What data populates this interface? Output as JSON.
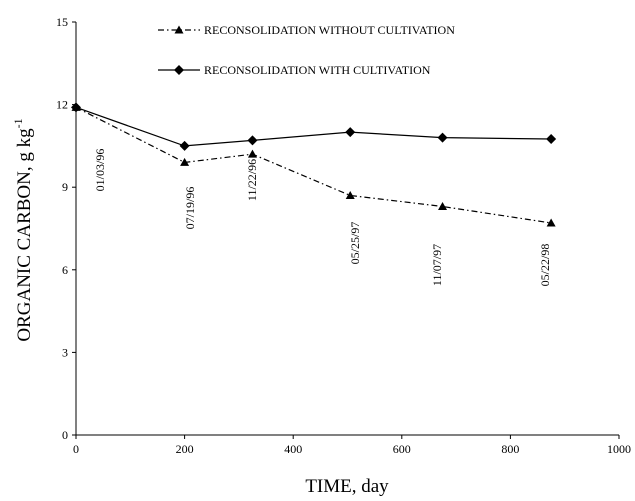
{
  "chart_data": {
    "type": "line",
    "xlabel": "TIME, day",
    "ylabel": {
      "text": "ORGANIC CARBON, g kg",
      "superscript": "-1"
    },
    "xlim": [
      0,
      1000
    ],
    "xticks": [
      0,
      200,
      400,
      600,
      800,
      1000
    ],
    "ylim": [
      0,
      15
    ],
    "yticks": [
      0,
      3,
      6,
      9,
      12,
      15
    ],
    "grid": false,
    "series": [
      {
        "name": "RECONSOLIDATION WITHOUT CULTIVATION",
        "color": "#000000",
        "dash": "dash-dot",
        "marker": "triangle",
        "x": [
          0,
          200,
          325,
          505,
          675,
          875
        ],
        "values": [
          11.9,
          9.9,
          10.2,
          8.7,
          8.3,
          7.7
        ]
      },
      {
        "name": "RECONSOLIDATION WITH CULTIVATION",
        "color": "#000000",
        "dash": "solid",
        "marker": "diamond",
        "x": [
          0,
          200,
          325,
          505,
          675,
          875
        ],
        "values": [
          11.9,
          10.5,
          10.7,
          11.0,
          10.8,
          10.75
        ]
      }
    ],
    "annotations": [
      "01/03/96",
      "07/19/96",
      "11/22/96",
      "05/25/97",
      "11/07/97",
      "05/22/98"
    ]
  }
}
